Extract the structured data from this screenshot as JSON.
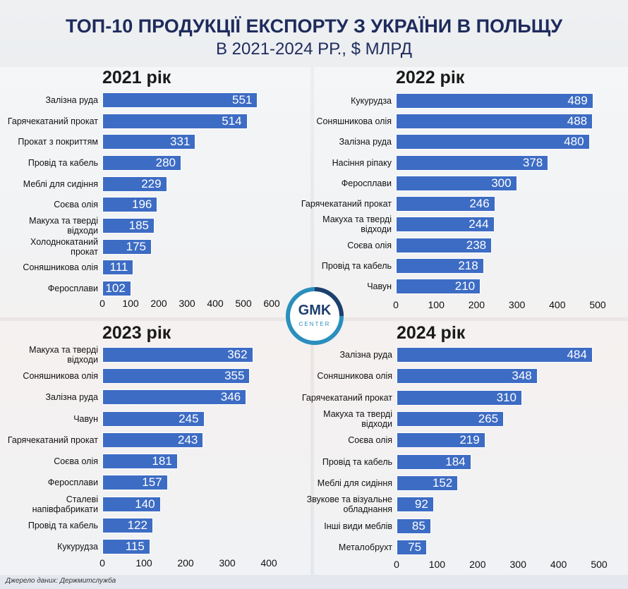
{
  "title": "ТОП-10 ПРОДУКЦІЇ ЕКСПОРТУ З УКРАЇНИ В ПОЛЬЩУ",
  "subtitle": "В 2021-2024 РР., $ МЛРД",
  "source": "Джерело даних: Держмитслужба",
  "logo": {
    "name": "GMK",
    "sub": "CENTER"
  },
  "chart_data": [
    {
      "type": "bar",
      "orientation": "horizontal",
      "title": "2021 рік",
      "color": "#3d6cc4",
      "categories": [
        "Залізна руда",
        "Гарячекатаний прокат",
        "Прокат з покриттям",
        "Провід та кабель",
        "Меблі для сидіння",
        "Соєва олія",
        "Макуха та тверді відходи",
        "Холоднокатаний прокат",
        "Соняшникова олія",
        "Феросплави"
      ],
      "values": [
        551,
        514,
        331,
        280,
        229,
        196,
        185,
        175,
        111,
        102
      ],
      "xlim": [
        0,
        600
      ],
      "xticks": [
        0,
        100,
        200,
        300,
        400,
        500,
        600
      ]
    },
    {
      "type": "bar",
      "orientation": "horizontal",
      "title": "2022 рік",
      "color": "#3d6cc4",
      "categories": [
        "Кукурудза",
        "Соняшникова олія",
        "Залізна руда",
        "Насіння ріпаку",
        "Феросплави",
        "Гарячекатаний прокат",
        "Макуха та тверді відходи",
        "Соєва олія",
        "Провід та кабель",
        "Чавун"
      ],
      "values": [
        489,
        488,
        480,
        378,
        300,
        246,
        244,
        238,
        218,
        210
      ],
      "xlim": [
        0,
        500
      ],
      "xticks": [
        0,
        100,
        200,
        300,
        400,
        500
      ]
    },
    {
      "type": "bar",
      "orientation": "horizontal",
      "title": "2023 рік",
      "color": "#3d6cc4",
      "categories": [
        "Макуха та тверді відходи",
        "Соняшникова олія",
        "Залізна руда",
        "Чавун",
        "Гарячекатаний прокат",
        "Соєва олія",
        "Феросплави",
        "Сталеві напівфабрикати",
        "Провід та кабель",
        "Кукурудза"
      ],
      "values": [
        362,
        355,
        346,
        245,
        243,
        181,
        157,
        140,
        122,
        115
      ],
      "xlim": [
        0,
        400
      ],
      "xticks": [
        0,
        100,
        200,
        300,
        400
      ]
    },
    {
      "type": "bar",
      "orientation": "horizontal",
      "title": "2024 рік",
      "color": "#3d6cc4",
      "categories": [
        "Залізна руда",
        "Соняшникова олія",
        "Гарячекатаний прокат",
        "Макуха та тверді відходи",
        "Соєва олія",
        "Провід та кабель",
        "Меблі для сидіння",
        "Звукове та візуальне обладнання",
        "Інші види меблів",
        "Металобрухт"
      ],
      "values": [
        484,
        348,
        310,
        265,
        219,
        184,
        152,
        92,
        85,
        75
      ],
      "xlim": [
        0,
        500
      ],
      "xticks": [
        0,
        100,
        200,
        300,
        400,
        500
      ]
    }
  ]
}
